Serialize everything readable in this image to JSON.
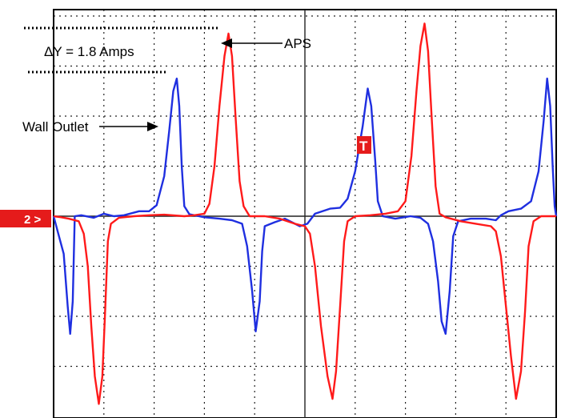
{
  "chart_data": {
    "type": "line",
    "title": "",
    "xlabel": "",
    "ylabel": "",
    "grid": true,
    "xlim": [
      0,
      10
    ],
    "ylim": [
      -4,
      4
    ],
    "annotations": {
      "delta_y": "ΔY = 1.8 Amps",
      "aps": "APS",
      "wall_outlet": "Wall Outlet",
      "channel_marker": "2 >",
      "trigger_marker": "T"
    },
    "series": [
      {
        "color": "#1f2fe0",
        "points": [
          [
            0.0,
            0.0
          ],
          [
            0.12,
            -0.45
          ],
          [
            0.2,
            -0.75
          ],
          [
            0.28,
            -1.8
          ],
          [
            0.33,
            -2.35
          ],
          [
            0.38,
            -1.7
          ],
          [
            0.42,
            0.0
          ],
          [
            0.55,
            0.02
          ],
          [
            0.8,
            -0.03
          ],
          [
            1.0,
            0.05
          ],
          [
            1.2,
            0.0
          ],
          [
            1.4,
            0.02
          ],
          [
            1.7,
            0.1
          ],
          [
            1.9,
            0.1
          ],
          [
            2.05,
            0.22
          ],
          [
            2.2,
            0.8
          ],
          [
            2.3,
            1.7
          ],
          [
            2.38,
            2.5
          ],
          [
            2.45,
            2.75
          ],
          [
            2.5,
            2.2
          ],
          [
            2.55,
            1.0
          ],
          [
            2.6,
            0.2
          ],
          [
            2.7,
            0.04
          ],
          [
            3.0,
            -0.02
          ],
          [
            3.3,
            -0.05
          ],
          [
            3.55,
            -0.08
          ],
          [
            3.75,
            -0.15
          ],
          [
            3.85,
            -0.6
          ],
          [
            3.95,
            -1.5
          ],
          [
            4.02,
            -2.3
          ],
          [
            4.1,
            -1.7
          ],
          [
            4.15,
            -0.7
          ],
          [
            4.2,
            -0.2
          ],
          [
            4.4,
            -0.12
          ],
          [
            4.6,
            -0.05
          ],
          [
            4.9,
            -0.2
          ],
          [
            5.05,
            -0.15
          ],
          [
            5.2,
            0.05
          ],
          [
            5.5,
            0.15
          ],
          [
            5.7,
            0.17
          ],
          [
            5.85,
            0.35
          ],
          [
            6.0,
            0.9
          ],
          [
            6.15,
            1.8
          ],
          [
            6.25,
            2.55
          ],
          [
            6.32,
            2.2
          ],
          [
            6.4,
            1.1
          ],
          [
            6.45,
            0.3
          ],
          [
            6.55,
            0.0
          ],
          [
            6.8,
            -0.05
          ],
          [
            7.1,
            0.0
          ],
          [
            7.3,
            -0.03
          ],
          [
            7.45,
            -0.15
          ],
          [
            7.55,
            -0.5
          ],
          [
            7.65,
            -1.3
          ],
          [
            7.72,
            -2.1
          ],
          [
            7.8,
            -2.35
          ],
          [
            7.88,
            -1.5
          ],
          [
            7.95,
            -0.4
          ],
          [
            8.05,
            -0.1
          ],
          [
            8.3,
            -0.05
          ],
          [
            8.6,
            -0.05
          ],
          [
            8.8,
            -0.08
          ],
          [
            8.9,
            0.02
          ],
          [
            9.05,
            0.1
          ],
          [
            9.3,
            0.15
          ],
          [
            9.5,
            0.3
          ],
          [
            9.65,
            0.9
          ],
          [
            9.75,
            1.9
          ],
          [
            9.82,
            2.75
          ],
          [
            9.88,
            2.2
          ],
          [
            9.93,
            1.0
          ],
          [
            9.97,
            0.2
          ],
          [
            10.0,
            0.0
          ]
        ]
      },
      {
        "color": "#ff1a1a",
        "points": [
          [
            0.0,
            0.0
          ],
          [
            0.15,
            -0.02
          ],
          [
            0.3,
            -0.05
          ],
          [
            0.5,
            -0.1
          ],
          [
            0.6,
            -0.35
          ],
          [
            0.68,
            -1.0
          ],
          [
            0.75,
            -2.2
          ],
          [
            0.82,
            -3.2
          ],
          [
            0.9,
            -3.75
          ],
          [
            0.97,
            -3.2
          ],
          [
            1.02,
            -2.0
          ],
          [
            1.08,
            -0.5
          ],
          [
            1.14,
            -0.15
          ],
          [
            1.3,
            -0.03
          ],
          [
            1.6,
            0.0
          ],
          [
            1.9,
            0.02
          ],
          [
            2.2,
            0.03
          ],
          [
            2.6,
            0.0
          ],
          [
            2.8,
            0.02
          ],
          [
            3.0,
            0.05
          ],
          [
            3.1,
            0.25
          ],
          [
            3.2,
            1.0
          ],
          [
            3.3,
            2.2
          ],
          [
            3.4,
            3.2
          ],
          [
            3.48,
            3.65
          ],
          [
            3.55,
            3.2
          ],
          [
            3.62,
            2.0
          ],
          [
            3.7,
            0.7
          ],
          [
            3.78,
            0.2
          ],
          [
            3.9,
            0.0
          ],
          [
            4.2,
            0.0
          ],
          [
            4.5,
            -0.05
          ],
          [
            4.8,
            -0.15
          ],
          [
            5.0,
            -0.2
          ],
          [
            5.1,
            -0.35
          ],
          [
            5.2,
            -1.0
          ],
          [
            5.32,
            -2.2
          ],
          [
            5.45,
            -3.2
          ],
          [
            5.55,
            -3.65
          ],
          [
            5.62,
            -3.1
          ],
          [
            5.7,
            -1.8
          ],
          [
            5.78,
            -0.5
          ],
          [
            5.85,
            -0.1
          ],
          [
            6.0,
            0.0
          ],
          [
            6.3,
            0.02
          ],
          [
            6.6,
            0.05
          ],
          [
            6.85,
            0.1
          ],
          [
            7.0,
            0.3
          ],
          [
            7.12,
            1.2
          ],
          [
            7.22,
            2.5
          ],
          [
            7.3,
            3.4
          ],
          [
            7.38,
            3.85
          ],
          [
            7.45,
            3.3
          ],
          [
            7.52,
            2.0
          ],
          [
            7.6,
            0.6
          ],
          [
            7.68,
            0.05
          ],
          [
            7.8,
            -0.02
          ],
          [
            8.1,
            -0.1
          ],
          [
            8.4,
            -0.15
          ],
          [
            8.7,
            -0.2
          ],
          [
            8.8,
            -0.3
          ],
          [
            8.9,
            -0.8
          ],
          [
            9.0,
            -1.8
          ],
          [
            9.1,
            -2.8
          ],
          [
            9.2,
            -3.65
          ],
          [
            9.3,
            -3.1
          ],
          [
            9.38,
            -1.9
          ],
          [
            9.45,
            -0.6
          ],
          [
            9.55,
            -0.1
          ],
          [
            9.7,
            0.0
          ],
          [
            10.0,
            0.0
          ]
        ]
      }
    ]
  }
}
